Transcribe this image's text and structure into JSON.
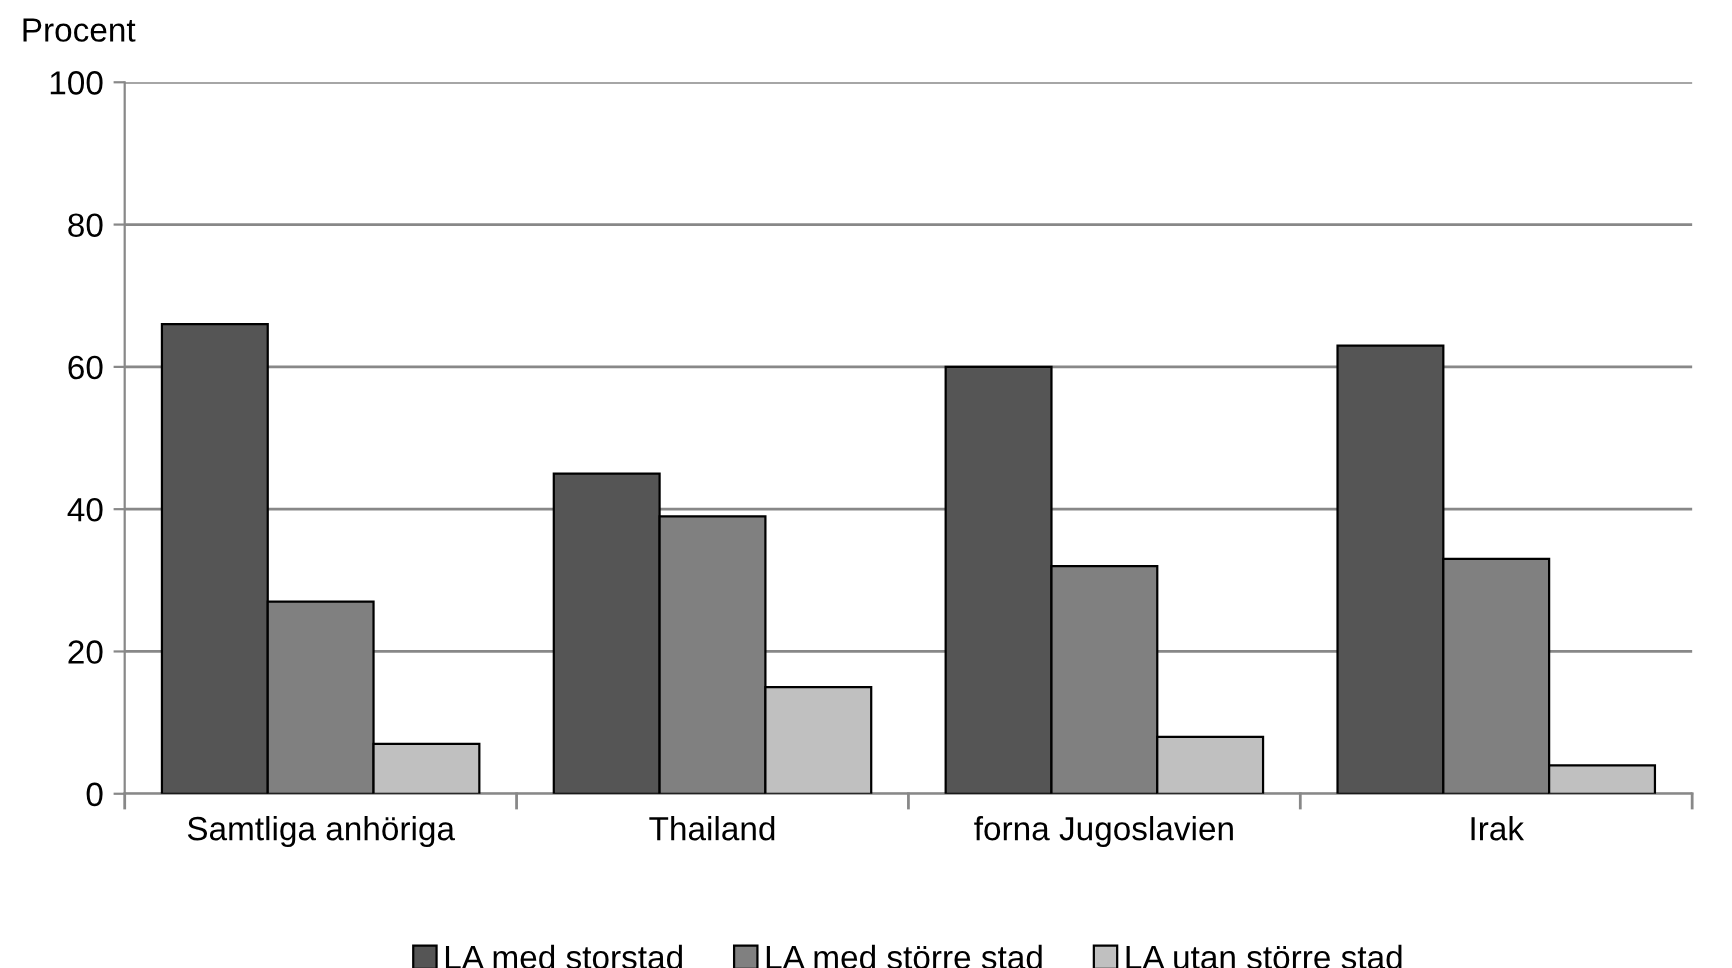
{
  "chart_data": {
    "type": "bar",
    "ylabel": "Procent",
    "categories": [
      "Samtliga anhöriga",
      "Thailand",
      "forna Jugoslavien",
      "Irak"
    ],
    "series": [
      {
        "name": "LA med storstad",
        "color": "#555555",
        "values": [
          66,
          45,
          60,
          63
        ]
      },
      {
        "name": "LA med större stad",
        "color": "#808080",
        "values": [
          27,
          39,
          32,
          33
        ]
      },
      {
        "name": "LA utan större stad",
        "color": "#c0c0c0",
        "values": [
          7,
          15,
          8,
          4
        ]
      }
    ],
    "ylim": [
      0,
      100
    ],
    "yticks": [
      0,
      20,
      40,
      60,
      80,
      100
    ],
    "grid": "y",
    "legend": "bottom"
  }
}
